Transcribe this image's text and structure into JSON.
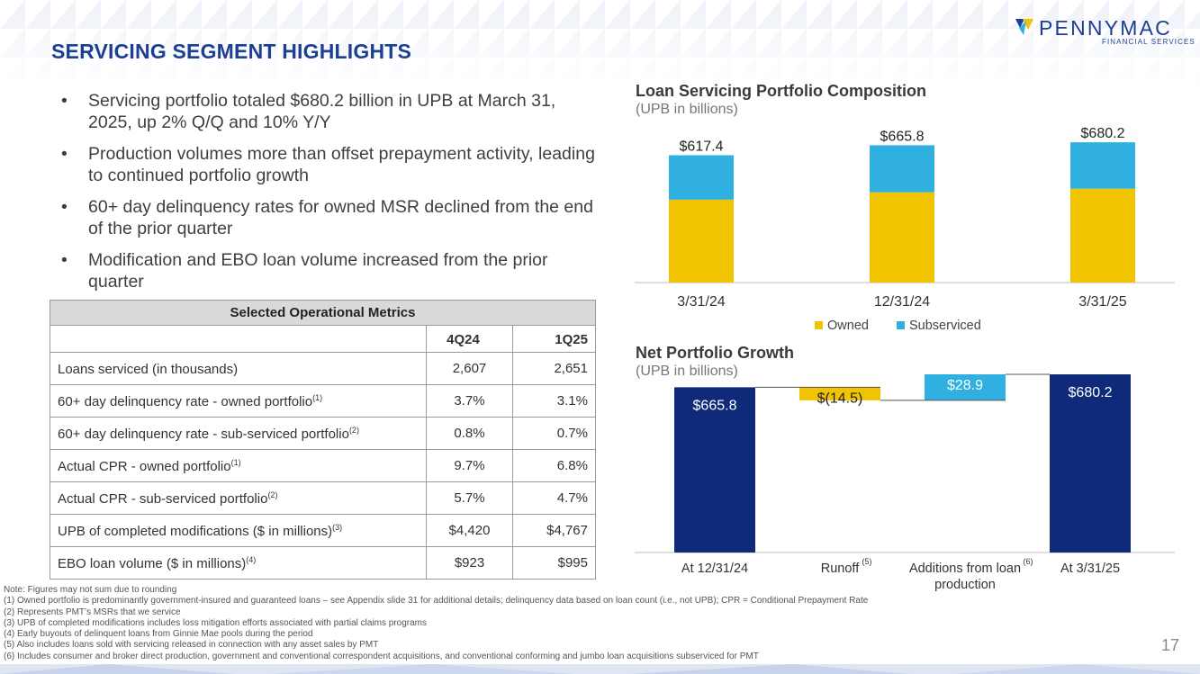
{
  "title": "SERVICING SEGMENT HIGHLIGHTS",
  "logo": {
    "name": "PENNYMAC",
    "sub": "FINANCIAL SERVICES"
  },
  "bullets": [
    "Servicing portfolio totaled $680.2 billion in UPB at March 31, 2025, up 2% Q/Q and 10% Y/Y",
    "Production volumes more than offset prepayment activity, leading to continued portfolio growth",
    "60+ day delinquency rates for owned MSR declined from the end of the prior quarter",
    "Modification and EBO loan volume increased from the prior quarter"
  ],
  "table": {
    "title": "Selected Operational Metrics",
    "columns": [
      "4Q24",
      "1Q25"
    ],
    "rows": [
      {
        "label": "Loans serviced (in thousands)",
        "note": "",
        "v1": "2,607",
        "v2": "2,651"
      },
      {
        "label": "60+ day delinquency rate - owned portfolio",
        "note": "(1)",
        "v1": "3.7%",
        "v2": "3.1%"
      },
      {
        "label": "60+ day delinquency rate - sub-serviced portfolio",
        "note": "(2)",
        "v1": "0.8%",
        "v2": "0.7%"
      },
      {
        "label": "Actual CPR - owned portfolio",
        "note": "(1)",
        "v1": "9.7%",
        "v2": "6.8%"
      },
      {
        "label": "Actual CPR - sub-serviced portfolio",
        "note": "(2)",
        "v1": "5.7%",
        "v2": "4.7%"
      },
      {
        "label": "UPB of completed modifications ($ in millions)",
        "note": "(3)",
        "v1": "$4,420",
        "v2": "$4,767"
      },
      {
        "label": "EBO loan volume ($ in millions)",
        "note": "(4)",
        "v1": "$923",
        "v2": "$995"
      }
    ]
  },
  "colors": {
    "navy": "#1c3f94",
    "darknavy": "#0e2a78",
    "owned": "#f0c400",
    "subserviced": "#2fb0e0"
  },
  "chart_data": [
    {
      "type": "bar",
      "stacked": true,
      "title": "Loan Servicing Portfolio Composition",
      "subtitle": "(UPB in billions)",
      "categories": [
        "3/31/24",
        "12/31/24",
        "3/31/25"
      ],
      "series": [
        {
          "name": "Owned",
          "values": [
            402,
            438,
            455
          ]
        },
        {
          "name": "Subserviced",
          "values": [
            215.4,
            227.8,
            225.2
          ]
        }
      ],
      "totals": [
        "$617.4",
        "$665.8",
        "$680.2"
      ],
      "ylim": [
        0,
        720
      ],
      "legend": "bottom"
    },
    {
      "type": "bar",
      "waterfall": true,
      "title": "Net Portfolio Growth",
      "subtitle": "(UPB in billions)",
      "categories": [
        "At 12/31/24",
        "Runoff",
        "Additions from loan production",
        "At 3/31/25"
      ],
      "category_notes": [
        "",
        "(5)",
        "(6)",
        ""
      ],
      "values": [
        665.8,
        -14.5,
        28.9,
        680.2
      ],
      "labels": [
        "$665.8",
        "$(14.5)",
        "$28.9",
        "$680.2"
      ],
      "ylim": [
        0,
        680.2
      ]
    }
  ],
  "notes": [
    "Note: Figures may not sum due to rounding",
    "(1) Owned portfolio is predominantly government-insured and guaranteed loans – see Appendix slide 31 for additional details; delinquency data based on loan count (i.e., not UPB); CPR = Conditional Prepayment Rate",
    "(2) Represents PMT’s MSRs that we service",
    "(3) UPB of completed modifications includes loss mitigation efforts associated with partial claims programs",
    "(4) Early buyouts of delinquent loans from Ginnie Mae pools during the period",
    "(5) Also includes loans sold with servicing released in connection with any asset sales by PMT",
    "(6) Includes consumer and broker direct production, government and conventional correspondent acquisitions, and conventional conforming and jumbo loan acquisitions subserviced for PMT"
  ],
  "page_number": "17"
}
